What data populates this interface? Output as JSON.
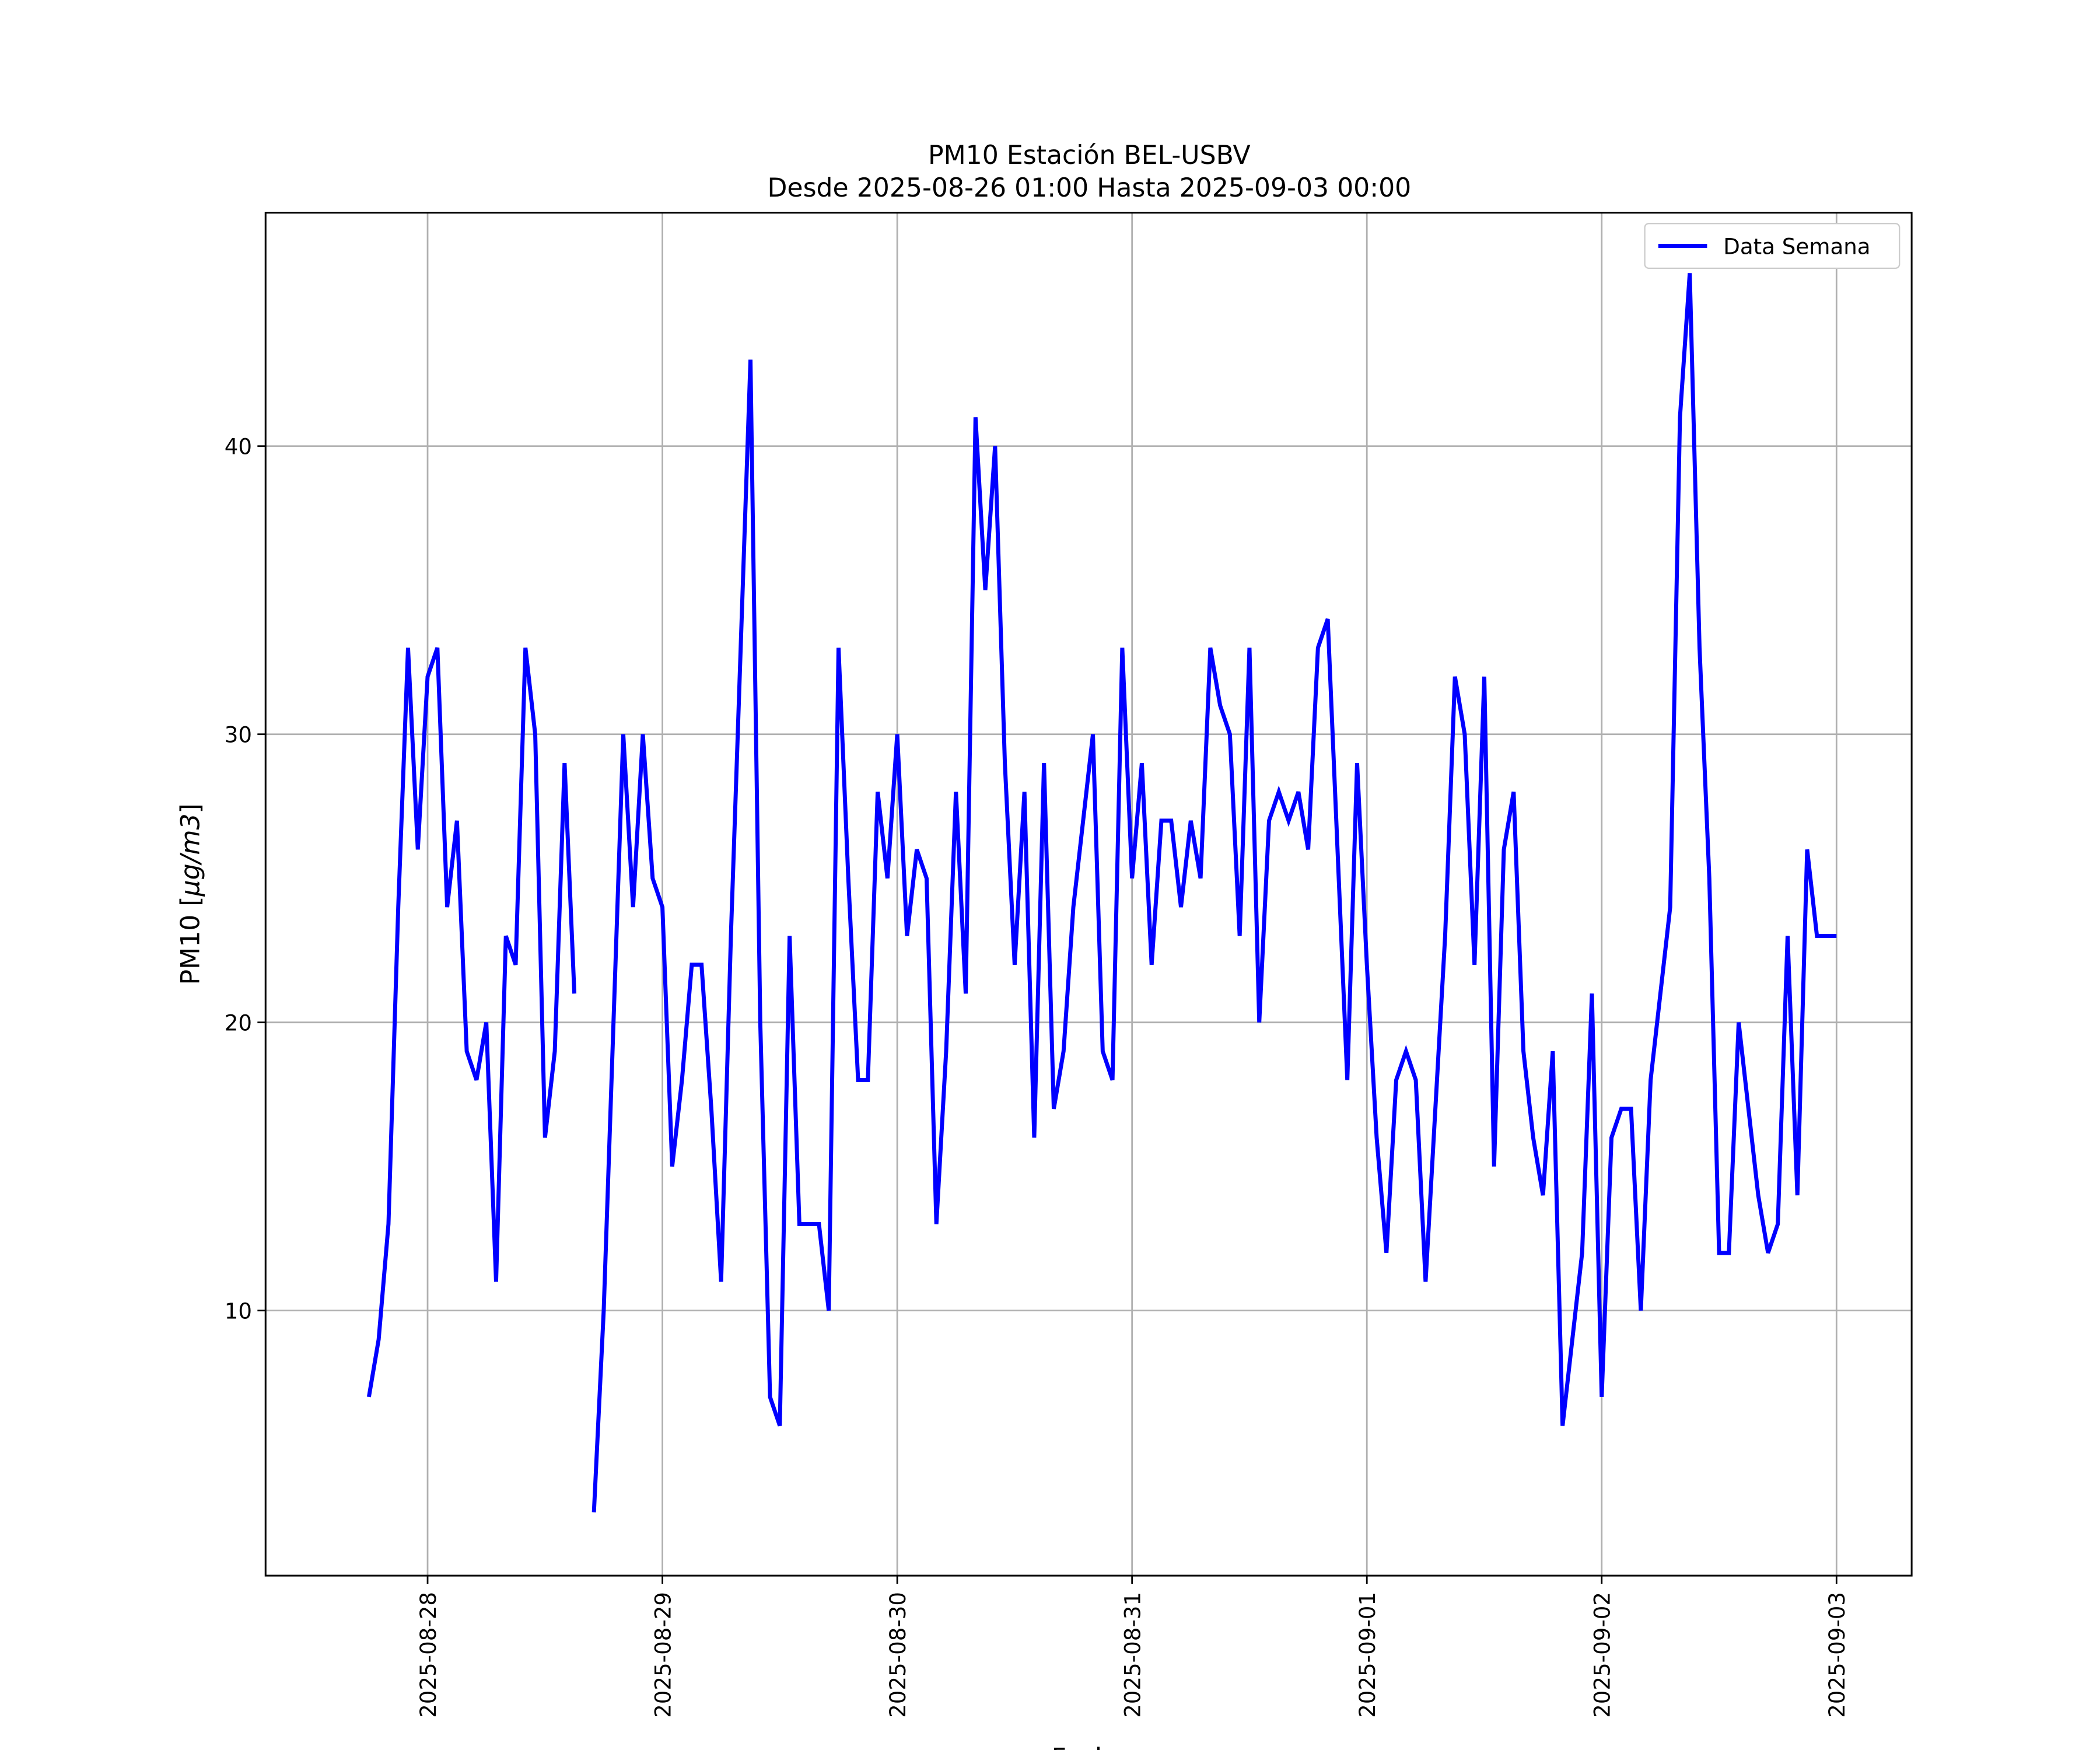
{
  "chart_data": {
    "type": "line",
    "title": "PM10 Estación BEL-USBV",
    "subtitle": "Desde 2025-08-26 01:00 Hasta 2025-09-03 00:00",
    "xlabel": "Fecha",
    "ylabel_prefix": "PM10 [",
    "ylabel_unit": "μg/m3",
    "ylabel_suffix": "]",
    "x_start": "2025-08-27 18:00",
    "x_step_hours": 1,
    "x_ticks": [
      "2025-08-28",
      "2025-08-29",
      "2025-08-30",
      "2025-08-31",
      "2025-09-01",
      "2025-09-02",
      "2025-09-03"
    ],
    "y_ticks": [
      10,
      20,
      30,
      40
    ],
    "ylim": [
      0.8,
      48.1
    ],
    "xlim_days_from_first_tick": [
      -0.69,
      6.32
    ],
    "grid": true,
    "legend_position": "top-right",
    "series": [
      {
        "name": "Data Semana",
        "color": "#0000ff",
        "values": [
          7,
          9,
          13,
          24,
          33,
          26,
          32,
          33,
          24,
          27,
          19,
          18,
          20,
          11,
          23,
          22,
          33,
          30,
          16,
          19,
          29,
          21,
          null,
          3,
          10,
          20,
          30,
          24,
          30,
          25,
          24,
          15,
          18,
          22,
          22,
          17,
          11,
          23,
          33,
          43,
          20,
          7,
          6,
          23,
          13,
          13,
          13,
          10,
          33,
          25,
          18,
          18,
          28,
          25,
          30,
          23,
          26,
          25,
          13,
          19,
          28,
          21,
          41,
          35,
          40,
          29,
          22,
          28,
          16,
          29,
          17,
          19,
          24,
          27,
          30,
          19,
          18,
          33,
          25,
          29,
          22,
          27,
          27,
          24,
          27,
          25,
          33,
          31,
          30,
          23,
          33,
          20,
          27,
          28,
          27,
          28,
          26,
          33,
          34,
          26,
          18,
          29,
          22,
          16,
          12,
          18,
          19,
          18,
          11,
          17,
          23,
          32,
          30,
          22,
          32,
          15,
          26,
          28,
          19,
          16,
          14,
          19,
          6,
          9,
          12,
          21,
          7,
          16,
          17,
          17,
          10,
          18,
          21,
          24,
          41,
          46,
          33,
          25,
          12,
          12,
          20,
          17,
          14,
          12,
          13,
          23,
          14,
          26,
          23,
          23,
          23
        ]
      }
    ]
  }
}
